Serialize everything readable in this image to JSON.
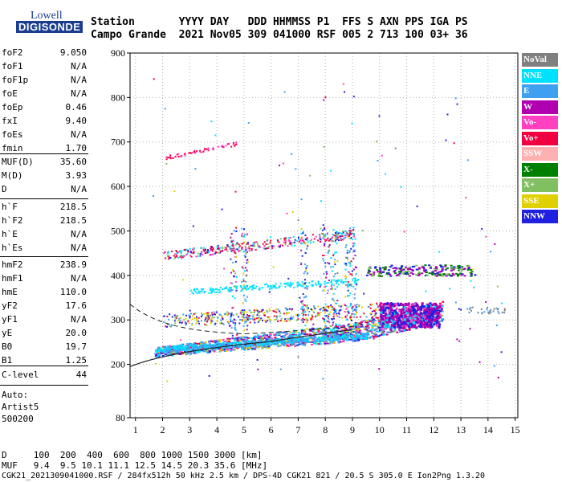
{
  "logo": {
    "lowell": "Lowell",
    "digisonde": "DIGISONDE"
  },
  "header": {
    "line1": "Station       YYYY DAY   DDD HHMMSS P1  FFS S AXN PPS IGA PS",
    "line2": "Campo Grande  2021 Nov05 309 041000 RSF 005 2 713 100 03+ 36"
  },
  "params_group1": [
    {
      "name": "foF2",
      "value": "9.050"
    },
    {
      "name": "foF1",
      "value": "N/A"
    },
    {
      "name": "foF1p",
      "value": "N/A"
    },
    {
      "name": "foE",
      "value": "N/A"
    },
    {
      "name": "foEp",
      "value": "0.46"
    },
    {
      "name": "fxI",
      "value": "9.40"
    },
    {
      "name": "foEs",
      "value": "N/A"
    },
    {
      "name": "fmin",
      "value": "1.70"
    }
  ],
  "params_group2": [
    {
      "name": "MUF(D)",
      "value": "35.60"
    },
    {
      "name": "M(D)",
      "value": "3.93"
    },
    {
      "name": "D",
      "value": "N/A"
    }
  ],
  "params_group3": [
    {
      "name": "h`F",
      "value": "218.5"
    },
    {
      "name": "h`F2",
      "value": "218.5"
    },
    {
      "name": "h`E",
      "value": "N/A"
    },
    {
      "name": "h`Es",
      "value": "N/A"
    }
  ],
  "params_group4": [
    {
      "name": "hmF2",
      "value": "238.9"
    },
    {
      "name": "hmF1",
      "value": "N/A"
    },
    {
      "name": "hmE",
      "value": "110.0"
    },
    {
      "name": "yF2",
      "value": "17.6"
    },
    {
      "name": "yF1",
      "value": "N/A"
    },
    {
      "name": "yE",
      "value": "20.0"
    },
    {
      "name": "B0",
      "value": "19.7"
    },
    {
      "name": "B1",
      "value": "1.25"
    }
  ],
  "clevel": {
    "name": "C-level",
    "value": "44"
  },
  "auto": {
    "line1": "Auto:",
    "line2": "Artist5",
    "line3": "500200"
  },
  "legend": [
    {
      "label": "NoVal",
      "color": "#808080"
    },
    {
      "label": "NNE",
      "color": "#00e0ff"
    },
    {
      "label": "E",
      "color": "#40a0f0"
    },
    {
      "label": "W",
      "color": "#b000b0"
    },
    {
      "label": "Vo-",
      "color": "#ff40c0"
    },
    {
      "label": "Vo+",
      "color": "#f00040"
    },
    {
      "label": "SSW",
      "color": "#ffb0b0"
    },
    {
      "label": "X-",
      "color": "#008000"
    },
    {
      "label": "X+",
      "color": "#80c060"
    },
    {
      "label": "SSE",
      "color": "#e0d000"
    },
    {
      "label": "NNW",
      "color": "#2020e0"
    }
  ],
  "footer": {
    "d_line": "D     100  200  400  600  800 1000 1500 3000 [km]",
    "muf_line": "MUF   9.4  9.5 10.1 11.1 12.5 14.5 20.3 35.6 [MHz]",
    "file_line": "CGK21_2021309041000.RSF / 284fx512h 50 kHz 2.5 km / DPS-4D CGK21 821 / 20.5 S 305.0 E Ion2Png 1.3.20"
  },
  "chart_data": {
    "type": "scatter",
    "xlim": [
      0.8,
      15.1
    ],
    "ylim": [
      80,
      900
    ],
    "x_ticks": [
      1,
      2,
      3,
      4,
      5,
      6,
      7,
      8,
      9,
      10,
      11,
      12,
      13,
      14,
      15
    ],
    "y_ticks": [
      80,
      200,
      300,
      400,
      500,
      600,
      700,
      800,
      900
    ],
    "grid": true,
    "legend_position": "right"
  }
}
